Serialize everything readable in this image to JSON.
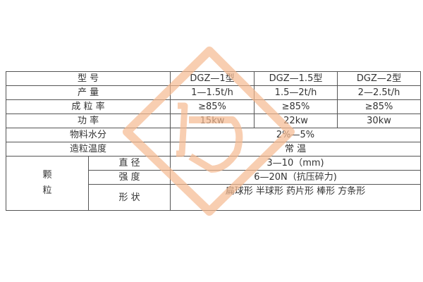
{
  "table": {
    "header": {
      "label": "型 号",
      "models": [
        "DGZ—1型",
        "DGZ—1.5型",
        "DGZ—2型"
      ]
    },
    "output": {
      "label": "产 量",
      "values": [
        "1—1.5t/h",
        "1.5—2t/h",
        "2—2.5t/h"
      ]
    },
    "granulation_rate": {
      "label": "成 粒 率",
      "values": [
        "≥85%",
        "≥85%",
        "≥85%"
      ]
    },
    "power": {
      "label": "功 率",
      "values": [
        "15kw",
        "22kw",
        "30kw"
      ]
    },
    "moisture": {
      "label": "物料水分",
      "value": "2%—5%"
    },
    "temperature": {
      "label": "造粒温度",
      "value": "常 温"
    },
    "granule": {
      "label_line1": "颗",
      "label_line2": "粒",
      "diameter": {
        "label": "直 径",
        "value": "3—10（mm)"
      },
      "strength": {
        "label": "强 度",
        "value": "6—20N（抗压碎力)"
      },
      "shape": {
        "label": "形 状",
        "value": "扁球形  半球形  药片形 棒形 方条形"
      }
    }
  },
  "watermark": {
    "color": "#f7c7a6",
    "icon": "company-logo-watermark"
  }
}
